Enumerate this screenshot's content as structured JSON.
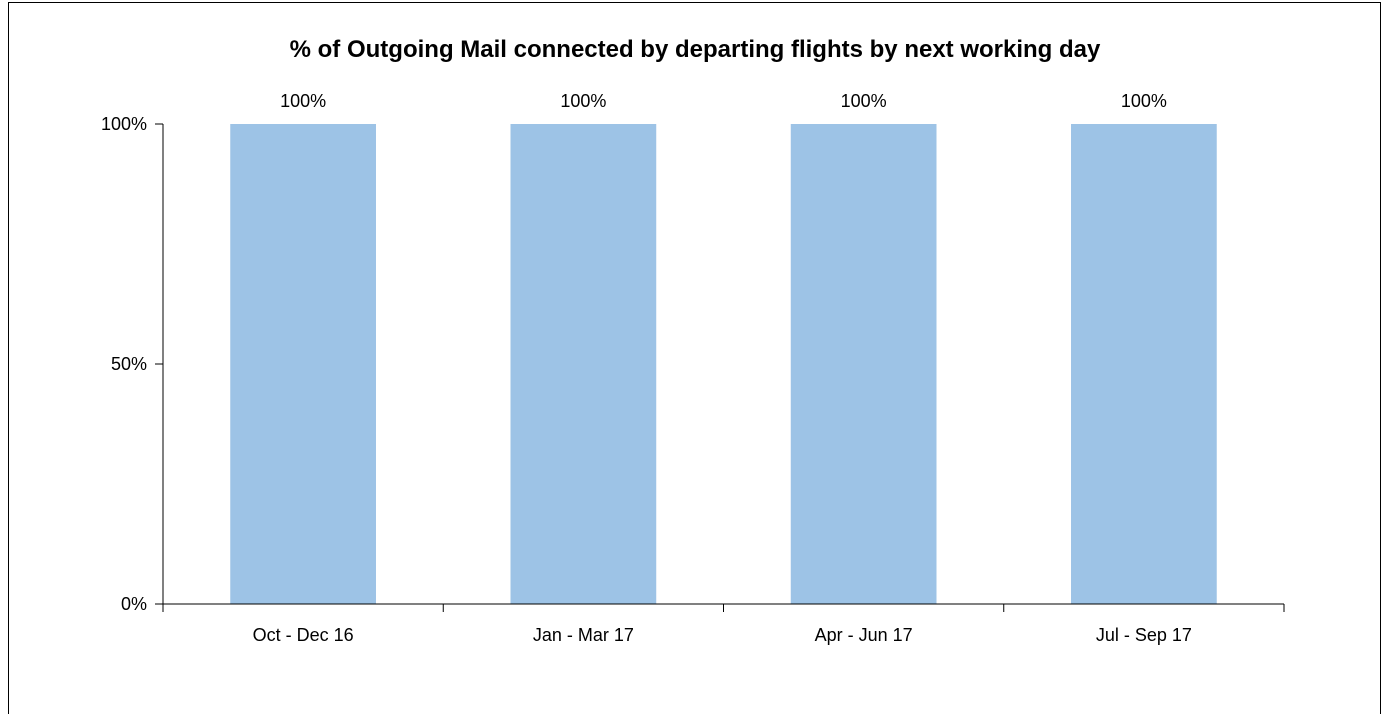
{
  "chart_data": {
    "type": "bar",
    "title": "% of Outgoing Mail connected by departing flights by next working day",
    "xlabel": "",
    "ylabel": "",
    "categories": [
      "Oct - Dec 16",
      "Jan - Mar 17",
      "Apr - Jun 17",
      "Jul - Sep 17"
    ],
    "values": [
      100,
      100,
      100,
      100
    ],
    "data_labels": [
      "100%",
      "100%",
      "100%",
      "100%"
    ],
    "ylim": [
      0,
      100
    ],
    "yticks": [
      0,
      50,
      100
    ],
    "ytick_labels": [
      "0%",
      "50%",
      "100%"
    ],
    "grid": false,
    "legend": "none",
    "bar_color": "#9dc3e6"
  }
}
